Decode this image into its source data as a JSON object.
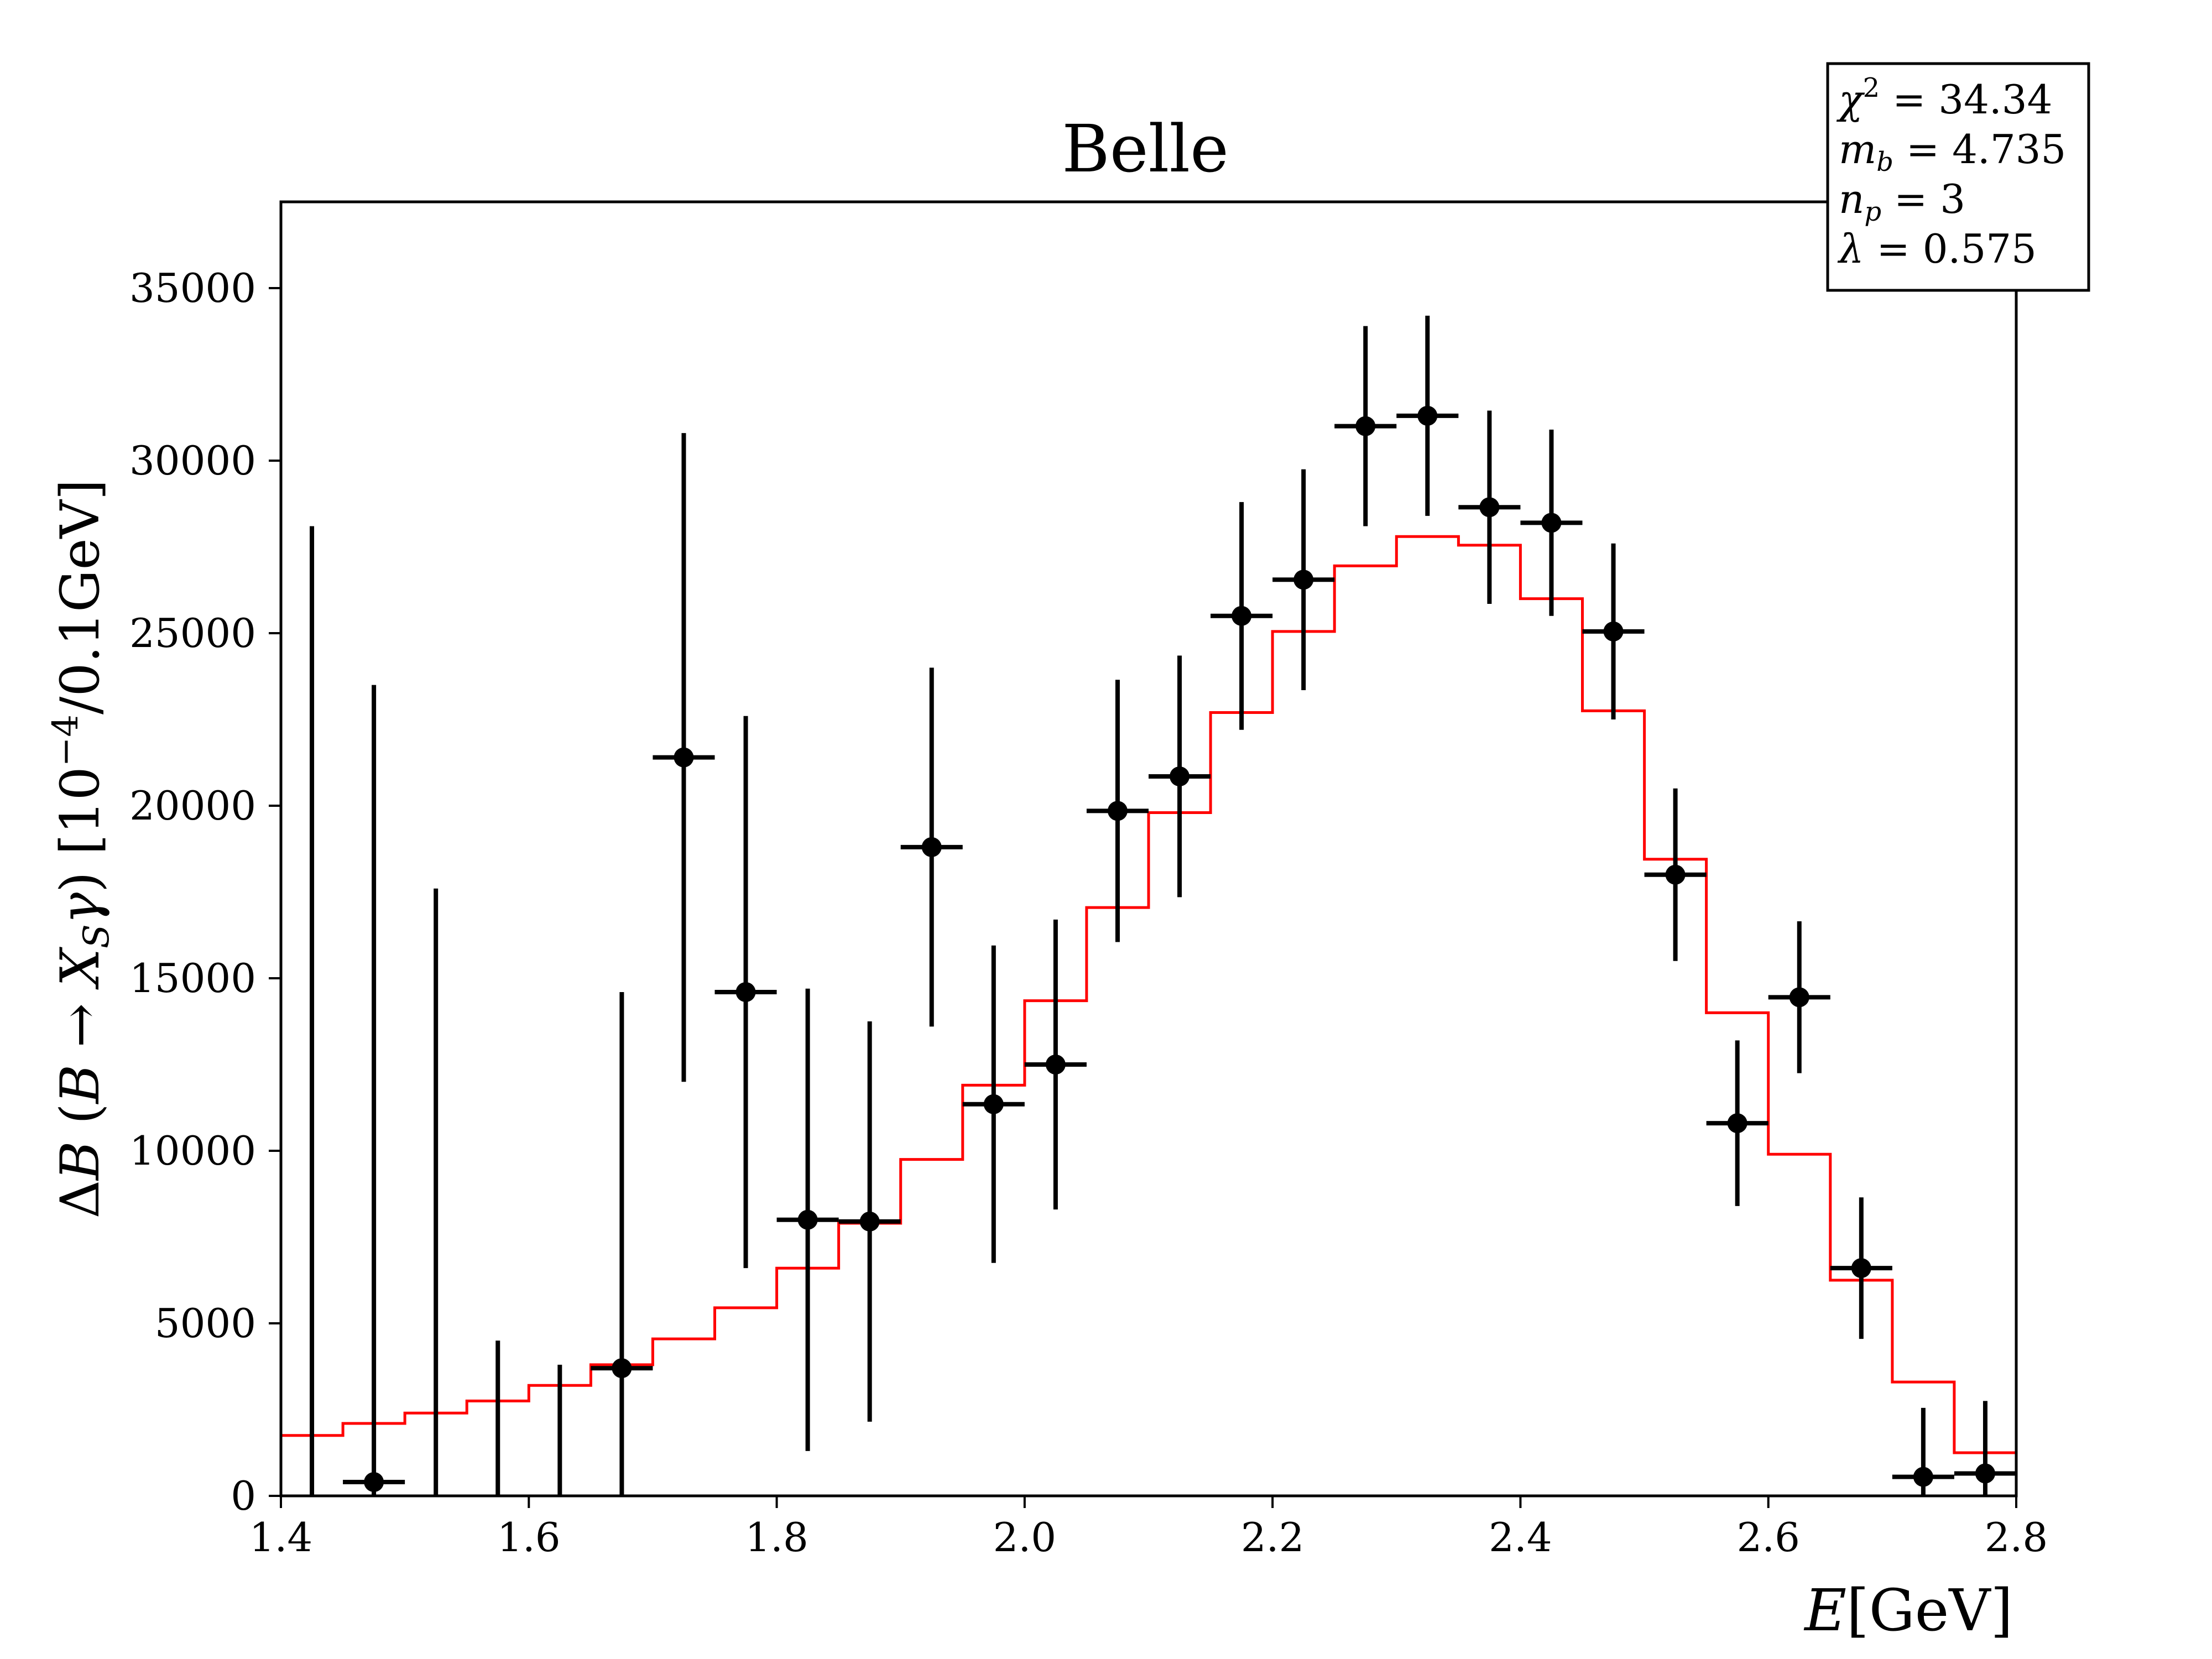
{
  "chart_data": {
    "type": "scatter",
    "title": "Belle",
    "xlabel": "E[GeV]",
    "ylabel": "ΔB (B → X_Sγ)  [10^−4/0.1GeV]",
    "xlim": [
      1.4,
      2.8
    ],
    "ylim": [
      0,
      37500
    ],
    "xticks": [
      "1.4",
      "1.6",
      "1.8",
      "2.0",
      "2.2",
      "2.4",
      "2.6",
      "2.8"
    ],
    "yticks": [
      "0",
      "5000",
      "10000",
      "15000",
      "20000",
      "25000",
      "30000",
      "35000"
    ],
    "grid": false,
    "series": [
      {
        "kind": "points-with-errors",
        "color": "#000000",
        "x": [
          1.425,
          1.475,
          1.525,
          1.575,
          1.625,
          1.675,
          1.725,
          1.775,
          1.825,
          1.875,
          1.925,
          1.975,
          2.025,
          2.075,
          2.125,
          2.175,
          2.225,
          2.275,
          2.325,
          2.375,
          2.425,
          2.475,
          2.525,
          2.575,
          2.625,
          2.675,
          2.725,
          2.775
        ],
        "y": [
          null,
          400,
          null,
          null,
          null,
          3700,
          21400,
          14600,
          8000,
          7950,
          18800,
          11350,
          12500,
          19850,
          20850,
          25500,
          26550,
          31000,
          31300,
          28650,
          28200,
          25050,
          18000,
          10800,
          14450,
          6600,
          550,
          650
        ],
        "y_err_low": [
          null,
          400,
          null,
          null,
          null,
          3700,
          9400,
          8000,
          6700,
          5800,
          5200,
          4600,
          4200,
          3800,
          3500,
          3300,
          3200,
          2900,
          2900,
          2800,
          2700,
          2550,
          2500,
          2400,
          2200,
          2050,
          550,
          650
        ],
        "y_err_high": [
          28100,
          23100,
          17600,
          4500,
          3800,
          10900,
          9400,
          8000,
          6700,
          5800,
          5200,
          4600,
          4200,
          3800,
          3500,
          3300,
          3200,
          2900,
          2900,
          2800,
          2700,
          2550,
          2500,
          2400,
          2200,
          2050,
          2000,
          2100
        ],
        "x_halfwidth": 0.025
      },
      {
        "kind": "step",
        "color": "#ff0000",
        "bin_edges": [
          1.4,
          1.45,
          1.5,
          1.55,
          1.6,
          1.65,
          1.7,
          1.75,
          1.8,
          1.85,
          1.9,
          1.95,
          2.0,
          2.05,
          2.1,
          2.15,
          2.2,
          2.25,
          2.3,
          2.35,
          2.4,
          2.45,
          2.5,
          2.55,
          2.6,
          2.65,
          2.7,
          2.75,
          2.8
        ],
        "values": [
          1750,
          2100,
          2400,
          2750,
          3200,
          3800,
          4550,
          5450,
          6600,
          7900,
          9750,
          11900,
          14350,
          17050,
          19800,
          22700,
          25050,
          26950,
          27800,
          27550,
          26000,
          22750,
          18450,
          14000,
          9900,
          6250,
          3300,
          1250
        ]
      }
    ],
    "legend": {
      "position": "top-right",
      "entries": [
        "χ² = 34.34",
        "m_b = 4.735",
        "n_p = 3",
        "λ = 0.575"
      ]
    }
  }
}
